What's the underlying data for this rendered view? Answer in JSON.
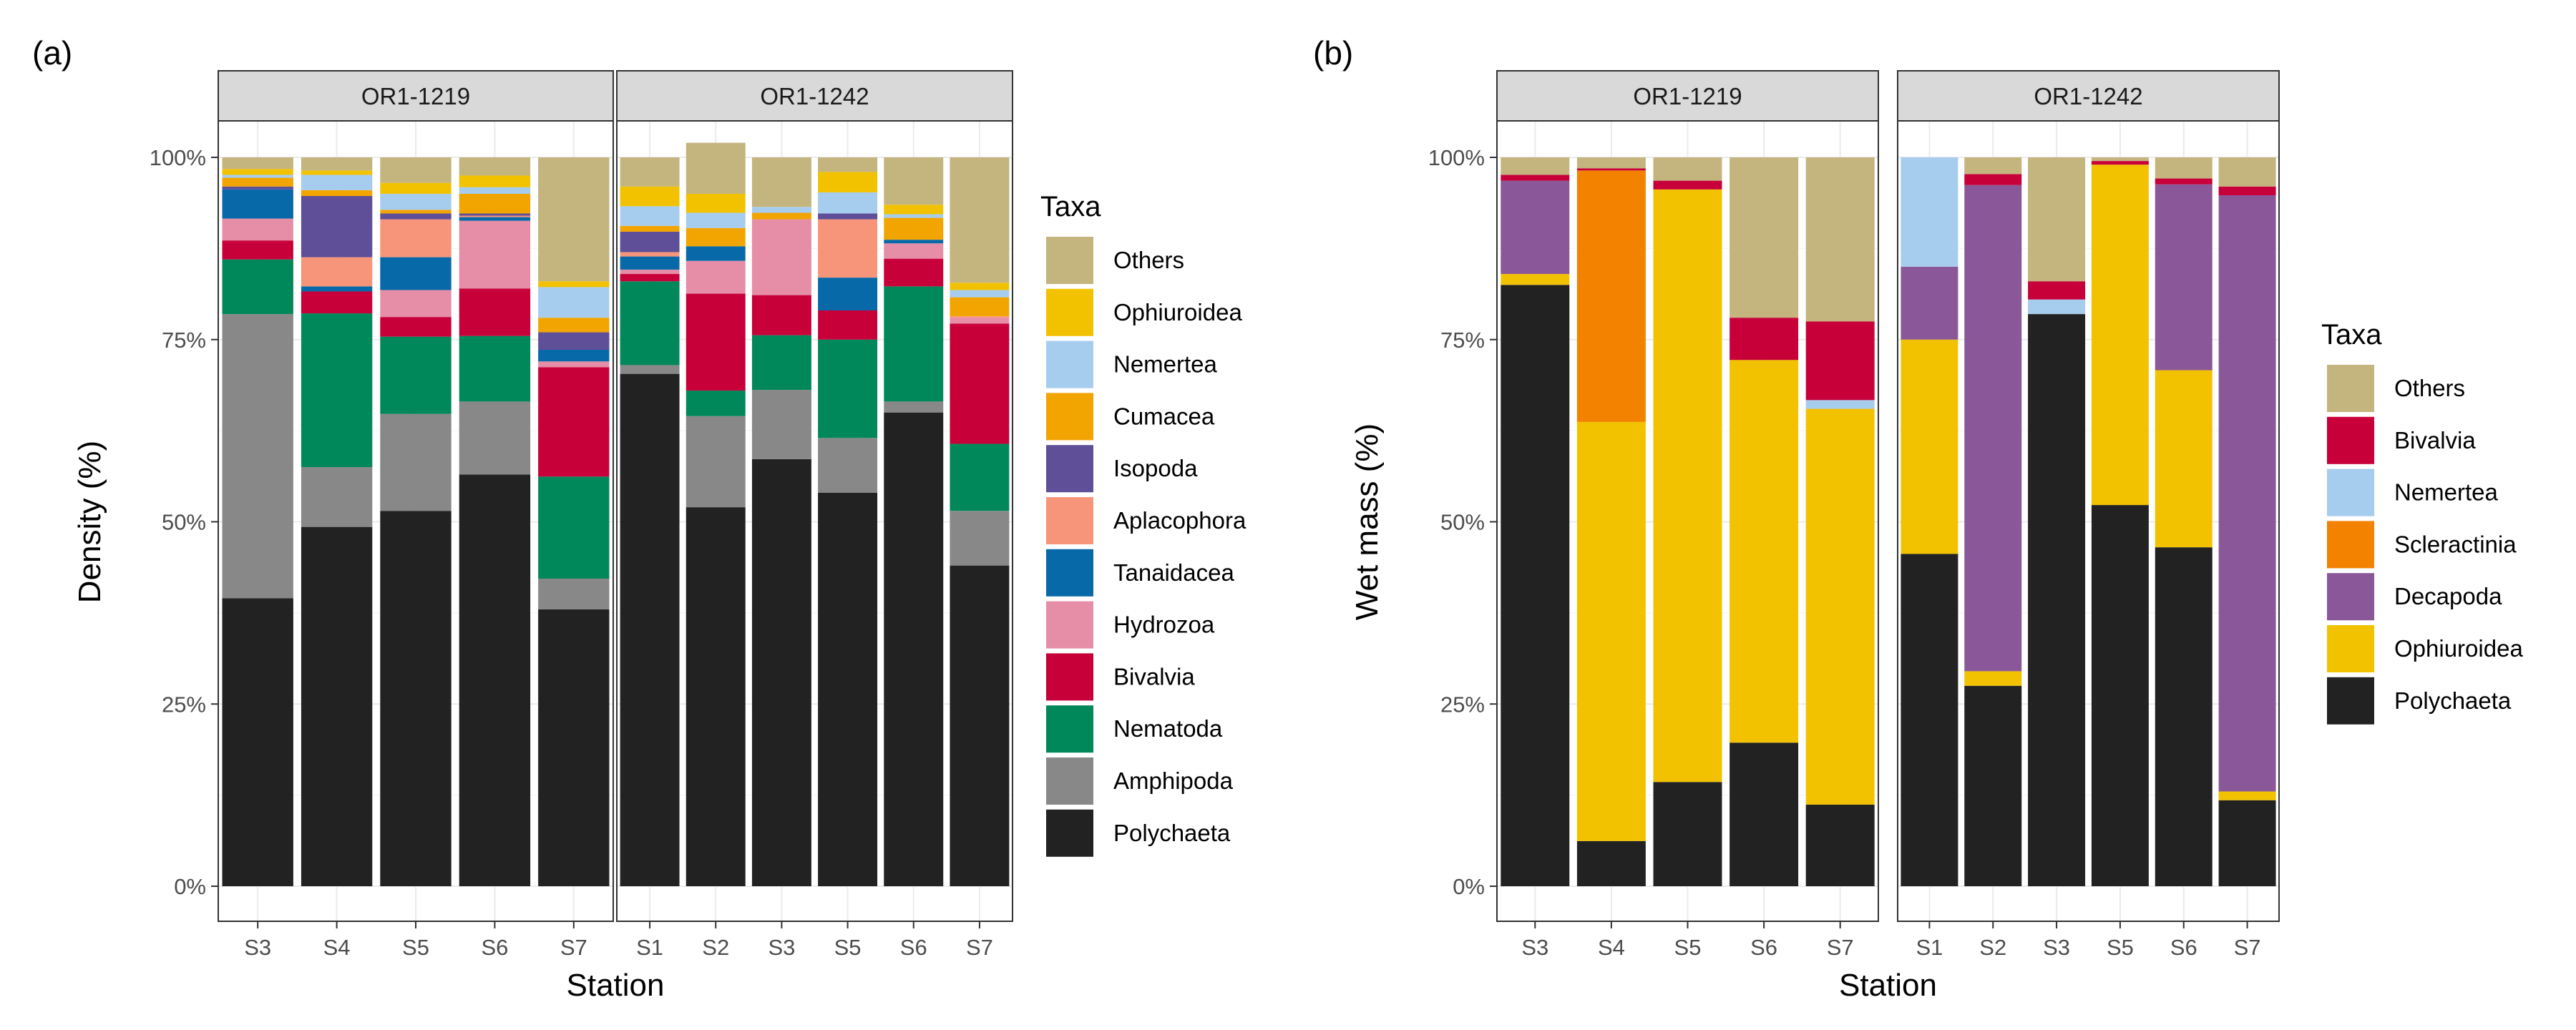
{
  "colors": {
    "Others": "#C4B47E",
    "Ophiuroidea": "#F2C200",
    "Nemertea": "#A6CCEE",
    "Cumacea": "#F2A400",
    "Isopoda": "#5E4F98",
    "Aplacophora": "#F7957A",
    "Tanaidacea": "#0869A8",
    "Hydrozoa": "#E68DA8",
    "Bivalvia": "#C8003A",
    "Nematoda": "#00875A",
    "Amphipoda": "#888888",
    "Polychaeta": "#222222",
    "Scleractinia": "#F28200",
    "Decapoda": "#8A5899"
  },
  "chart_data": [
    {
      "type": "bar",
      "stacked": true,
      "panel_tag": "(a)",
      "xlabel": "Station",
      "ylabel": "Density (%)",
      "ylim": [
        0,
        100
      ],
      "y_ticks": [
        "0%",
        "25%",
        "50%",
        "75%",
        "100%"
      ],
      "legend": {
        "title": "Taxa",
        "position": "right",
        "entries": [
          "Others",
          "Ophiuroidea",
          "Nemertea",
          "Cumacea",
          "Isopoda",
          "Aplacophora",
          "Tanaidacea",
          "Hydrozoa",
          "Bivalvia",
          "Nematoda",
          "Amphipoda",
          "Polychaeta"
        ]
      },
      "facets": [
        {
          "name": "OR1-1219",
          "categories": [
            "S3",
            "S4",
            "S5",
            "S6",
            "S7"
          ],
          "series": [
            {
              "name": "Polychaeta",
              "values": [
                39.5,
                49.3,
                51.5,
                56.5,
                38
              ]
            },
            {
              "name": "Amphipoda",
              "values": [
                39,
                8.2,
                13.3,
                10,
                4.2
              ]
            },
            {
              "name": "Nematoda",
              "values": [
                7.5,
                21.1,
                10.6,
                9,
                14
              ]
            },
            {
              "name": "Bivalvia",
              "values": [
                2.6,
                3,
                2.7,
                6.5,
                15
              ]
            },
            {
              "name": "Hydrozoa",
              "values": [
                3,
                0,
                3.7,
                9.3,
                0.8
              ]
            },
            {
              "name": "Tanaidacea",
              "values": [
                4,
                0.7,
                4.5,
                0.5,
                1.6
              ]
            },
            {
              "name": "Aplacophora",
              "values": [
                0,
                4,
                5.2,
                0.2,
                0
              ]
            },
            {
              "name": "Isopoda",
              "values": [
                0.4,
                8.4,
                0.8,
                0.3,
                2.4
              ]
            },
            {
              "name": "Cumacea",
              "values": [
                1.2,
                0.8,
                0.5,
                2.7,
                2
              ]
            },
            {
              "name": "Nemertea",
              "values": [
                0.4,
                2.1,
                2.2,
                0.9,
                4.2
              ]
            },
            {
              "name": "Ophiuroidea",
              "values": [
                0.8,
                0.6,
                1.5,
                1.6,
                0.8
              ]
            },
            {
              "name": "Others",
              "values": [
                1.6,
                1.8,
                3.5,
                2.5,
                17
              ]
            }
          ]
        },
        {
          "name": "OR1-1242",
          "categories": [
            "S1",
            "S2",
            "S3",
            "S5",
            "S6",
            "S7"
          ],
          "series": [
            {
              "name": "Polychaeta",
              "values": [
                70.3,
                52,
                58.6,
                54,
                65,
                44
              ]
            },
            {
              "name": "Amphipoda",
              "values": [
                1.2,
                12.5,
                9.5,
                7.5,
                1.5,
                7.5
              ]
            },
            {
              "name": "Nematoda",
              "values": [
                11.5,
                3.5,
                7.5,
                13.5,
                15.8,
                9.2
              ]
            },
            {
              "name": "Bivalvia",
              "values": [
                1,
                13.3,
                5.5,
                4,
                3.8,
                16.5
              ]
            },
            {
              "name": "Hydrozoa",
              "values": [
                0.6,
                4.5,
                10.4,
                0,
                2.1,
                0.8
              ]
            },
            {
              "name": "Tanaidacea",
              "values": [
                1.8,
                2,
                0,
                4.5,
                0.5,
                0
              ]
            },
            {
              "name": "Aplacophora",
              "values": [
                0.6,
                0,
                0,
                8,
                0,
                0.2
              ]
            },
            {
              "name": "Isopoda",
              "values": [
                2.8,
                0,
                0,
                0.8,
                0,
                0
              ]
            },
            {
              "name": "Cumacea",
              "values": [
                0.8,
                2.5,
                0.9,
                0,
                3,
                2.6
              ]
            },
            {
              "name": "Nemertea",
              "values": [
                2.7,
                2.1,
                0.8,
                2.9,
                0.5,
                1
              ]
            },
            {
              "name": "Ophiuroidea",
              "values": [
                2.7,
                2.6,
                0,
                2.8,
                1.3,
                1
              ]
            },
            {
              "name": "Others",
              "values": [
                4,
                7,
                6.8,
                2,
                6.5,
                17.2
              ]
            }
          ]
        }
      ]
    },
    {
      "type": "bar",
      "stacked": true,
      "panel_tag": "(b)",
      "xlabel": "Station",
      "ylabel": "Wet mass (%)",
      "ylim": [
        0,
        100
      ],
      "y_ticks": [
        "0%",
        "25%",
        "50%",
        "75%",
        "100%"
      ],
      "legend": {
        "title": "Taxa",
        "position": "right",
        "entries": [
          "Others",
          "Bivalvia",
          "Nemertea",
          "Scleractinia",
          "Decapoda",
          "Ophiuroidea",
          "Polychaeta"
        ]
      },
      "facets": [
        {
          "name": "OR1-1219",
          "categories": [
            "S3",
            "S4",
            "S5",
            "S6",
            "S7"
          ],
          "series": [
            {
              "name": "Polychaeta",
              "values": [
                82.5,
                6.2,
                14.3,
                19.7,
                11.2
              ]
            },
            {
              "name": "Ophiuroidea",
              "values": [
                1.5,
                57.5,
                81.3,
                52.5,
                54.3
              ]
            },
            {
              "name": "Decapoda",
              "values": [
                12.8,
                0,
                0,
                0,
                0
              ]
            },
            {
              "name": "Scleractinia",
              "values": [
                0,
                34.5,
                0,
                0,
                0
              ]
            },
            {
              "name": "Nemertea",
              "values": [
                0,
                0,
                0,
                0,
                1.2
              ]
            },
            {
              "name": "Bivalvia",
              "values": [
                0.8,
                0.3,
                1.2,
                5.8,
                10.8
              ]
            },
            {
              "name": "Others",
              "values": [
                2.4,
                1.5,
                3.2,
                22,
                22.5
              ]
            }
          ]
        },
        {
          "name": "OR1-1242",
          "categories": [
            "S1",
            "S2",
            "S3",
            "S5",
            "S6",
            "S7"
          ],
          "series": [
            {
              "name": "Polychaeta",
              "values": [
                45.6,
                27.5,
                78.5,
                52.3,
                46.5,
                11.8
              ]
            },
            {
              "name": "Ophiuroidea",
              "values": [
                29.4,
                2,
                0,
                46.7,
                24.3,
                1.2
              ]
            },
            {
              "name": "Decapoda",
              "values": [
                10,
                66.7,
                0,
                0,
                25.5,
                81.8
              ]
            },
            {
              "name": "Scleractinia",
              "values": [
                0,
                0,
                0,
                0,
                0,
                0
              ]
            },
            {
              "name": "Nemertea",
              "values": [
                15,
                0,
                2,
                0,
                0,
                0
              ]
            },
            {
              "name": "Bivalvia",
              "values": [
                0,
                1.5,
                2.5,
                0.5,
                0.8,
                1.2
              ]
            },
            {
              "name": "Others",
              "values": [
                0,
                2.3,
                17,
                0.5,
                2.9,
                4
              ]
            }
          ]
        }
      ]
    }
  ]
}
